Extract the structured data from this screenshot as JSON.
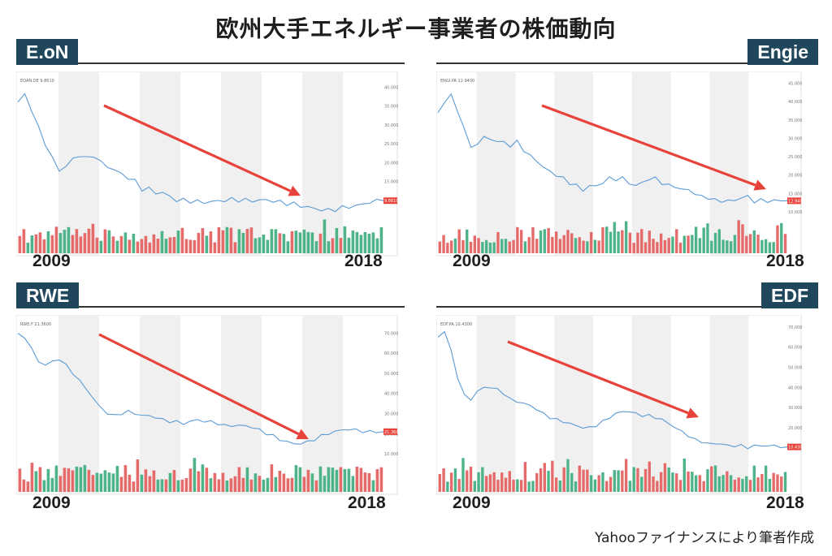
{
  "title": "欧州大手エネルギー事業者の株価動向",
  "source": "Yahooファイナンスにより筆者作成",
  "colors": {
    "tag_bg": "#20465c",
    "line": "#5b9bd5",
    "arrow": "#e8433a",
    "vol_up": "#4fb38a",
    "vol_down": "#e56b6b",
    "band": "#f0f0f0"
  },
  "chart_data": [
    {
      "type": "line",
      "company": "E.oN",
      "ticker_label": "EOAN.DE 9.8610",
      "x_start": "2009",
      "x_end": "2018",
      "y_ticks": [
        "40.0000",
        "35.0000",
        "30.0000",
        "25.0000",
        "20.0000",
        "15.0000",
        "10.0000"
      ],
      "ylim": [
        5,
        42
      ],
      "last_value": "9.8610",
      "values": [
        36,
        38,
        34,
        29,
        25,
        21,
        18,
        19,
        21,
        22,
        21,
        22,
        20,
        19,
        18,
        17,
        16,
        15,
        13,
        13,
        12,
        12,
        11,
        10,
        10,
        9.8,
        9.6,
        9.5,
        9.6,
        9.8,
        10,
        10.2,
        10.1,
        10,
        9.9,
        10,
        10.1,
        9.8,
        9.5,
        9.2,
        9.0,
        8.5,
        8.2,
        7.8,
        7.5,
        7.3,
        7.6,
        8.0,
        8.3,
        8.5,
        9.0,
        9.5,
        9.8,
        9.9
      ]
    },
    {
      "type": "line",
      "company": "Engie",
      "ticker_label": "ENGI.PA 12.9400",
      "x_start": "2009",
      "x_end": "2018",
      "y_ticks": [
        "45.0000",
        "40.0000",
        "35.0000",
        "30.0000",
        "25.0000",
        "20.0000",
        "15.0000",
        "10.0000"
      ],
      "ylim": [
        8,
        46
      ],
      "last_value": "12.9400",
      "values": [
        37,
        40,
        42,
        37,
        33,
        27,
        29,
        30,
        30,
        29,
        29,
        28,
        29,
        27,
        25,
        24,
        22,
        21,
        20,
        19,
        18,
        17,
        16,
        17,
        17,
        18,
        19,
        19,
        19,
        18,
        17,
        18,
        19,
        19,
        18,
        17,
        17,
        16,
        16,
        15,
        14,
        14,
        13,
        13,
        13,
        13,
        14,
        14,
        13,
        13,
        13,
        13,
        13,
        13
      ]
    },
    {
      "type": "line",
      "company": "RWE",
      "ticker_label": "RWE.F 21.3600",
      "x_start": "2009",
      "x_end": "2018",
      "y_ticks": [
        "70.0000",
        "60.0000",
        "50.0000",
        "40.0000",
        "30.0000",
        "20.0000",
        "10.0000"
      ],
      "ylim": [
        8,
        75
      ],
      "last_value": "21.3600",
      "values": [
        70,
        68,
        62,
        56,
        54,
        56,
        57,
        54,
        50,
        46,
        42,
        37,
        33,
        30,
        29,
        30,
        31,
        30,
        29,
        29,
        28,
        27,
        26,
        26,
        25,
        26,
        27,
        26,
        26,
        25,
        24,
        24,
        24,
        24,
        23,
        22,
        20,
        19,
        17,
        16,
        15,
        15,
        16,
        17,
        19,
        20,
        21,
        22,
        22,
        22,
        21,
        21,
        21,
        21
      ]
    },
    {
      "type": "line",
      "company": "EDF",
      "ticker_label": "EDF.PA 10.4300",
      "x_start": "2009",
      "x_end": "2018",
      "y_ticks": [
        "70.0000",
        "60.0000",
        "50.0000",
        "40.0000",
        "30.0000",
        "20.0000",
        "10.0000"
      ],
      "ylim": [
        5,
        72
      ],
      "last_value": "10.4300",
      "values": [
        65,
        68,
        58,
        45,
        36,
        34,
        38,
        40,
        40,
        39,
        37,
        34,
        33,
        32,
        31,
        29,
        27,
        25,
        24,
        23,
        22,
        21,
        20,
        20,
        21,
        23,
        25,
        27,
        28,
        28,
        27,
        26,
        26,
        25,
        24,
        22,
        20,
        18,
        16,
        14,
        13,
        12,
        12,
        12,
        11,
        11,
        11,
        10,
        11,
        11,
        11,
        11,
        10.5,
        10.4
      ]
    }
  ]
}
